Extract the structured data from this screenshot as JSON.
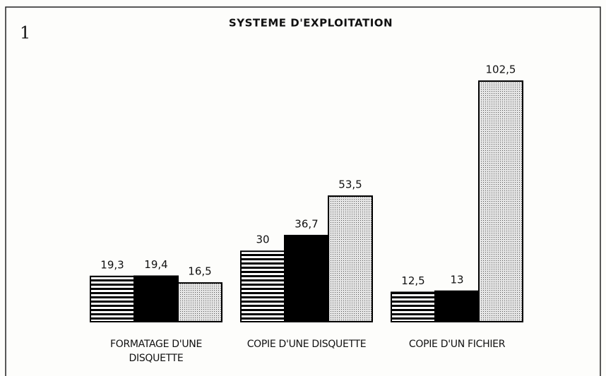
{
  "chart_data": {
    "type": "bar",
    "figure_number": "1",
    "title": "SYSTEME D'EXPLOITATION",
    "categories": [
      "FORMATAGE D'UNE DISQUETTE",
      "COPIE D'UNE DISQUETTE",
      "COPIE D'UN FICHIER"
    ],
    "series": [
      {
        "color": "#000000",
        "pattern": "stripes",
        "values": [
          19.3,
          30,
          12.5
        ],
        "value_labels": [
          "19,3",
          "30",
          "12,5"
        ]
      },
      {
        "color": "#000000",
        "pattern": "solid",
        "values": [
          19.4,
          36.7,
          13
        ],
        "value_labels": [
          "19,4",
          "36,7",
          "13"
        ]
      },
      {
        "color": "#000000",
        "pattern": "dots",
        "values": [
          16.5,
          53.5,
          102.5
        ],
        "value_labels": [
          "16,5",
          "53,5",
          "102,5"
        ]
      }
    ]
  }
}
